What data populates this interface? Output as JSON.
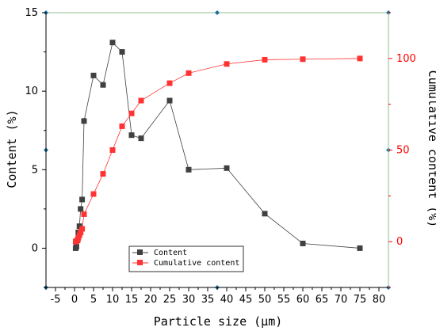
{
  "chart_data": {
    "type": "line",
    "xlabel": "Particle size (μm)",
    "ylabel_left": "Content (%)",
    "ylabel_right": "Cumulative content (%)",
    "xlim": [
      -7.5,
      82.5
    ],
    "ylim_left": [
      -2.5,
      15
    ],
    "ylim_right": [
      -25,
      125
    ],
    "x_ticks": [
      -5,
      0,
      5,
      10,
      15,
      20,
      25,
      30,
      35,
      40,
      45,
      50,
      55,
      60,
      65,
      70,
      75,
      80
    ],
    "x_tick_labels": [
      "-5",
      "0",
      "5",
      "10",
      "15",
      "20",
      "25",
      "30",
      "35",
      "40",
      "45",
      "50",
      "55",
      "60",
      "65",
      "70",
      "75",
      "80"
    ],
    "y_ticks_left": [
      0,
      5,
      10,
      15
    ],
    "y_tick_labels_left": [
      "0",
      "5",
      "10",
      "15"
    ],
    "y_ticks_right": [
      0,
      50,
      100
    ],
    "y_tick_labels_right": [
      "0",
      "50",
      "100"
    ],
    "grid": false,
    "legend_position": "bottom-center",
    "series": [
      {
        "name": "Content",
        "axis": "left",
        "color": "#404040",
        "marker": "square",
        "points": [
          [
            0.3,
            0.0
          ],
          [
            0.5,
            0.1
          ],
          [
            0.8,
            0.5
          ],
          [
            1.0,
            1.0
          ],
          [
            1.3,
            1.4
          ],
          [
            1.6,
            2.5
          ],
          [
            2.0,
            3.1
          ],
          [
            2.5,
            8.1
          ],
          [
            5.0,
            11.0
          ],
          [
            7.5,
            10.4
          ],
          [
            10.0,
            13.1
          ],
          [
            12.5,
            12.5
          ],
          [
            15.0,
            7.2
          ],
          [
            17.5,
            7.0
          ],
          [
            25.0,
            9.4
          ],
          [
            30.0,
            5.0
          ],
          [
            40.0,
            5.1
          ],
          [
            50.0,
            2.2
          ],
          [
            60.0,
            0.3
          ],
          [
            75.0,
            0.0
          ]
        ]
      },
      {
        "name": "Cumulative content",
        "axis": "right",
        "color": "#ff3333",
        "marker": "square",
        "points": [
          [
            0.3,
            0.0
          ],
          [
            0.5,
            0.2
          ],
          [
            0.8,
            1.0
          ],
          [
            1.0,
            2.0
          ],
          [
            1.3,
            3.5
          ],
          [
            1.6,
            5.0
          ],
          [
            2.0,
            7.0
          ],
          [
            2.5,
            15.0
          ],
          [
            5.0,
            26.0
          ],
          [
            7.5,
            37.0
          ],
          [
            10.0,
            50.0
          ],
          [
            12.5,
            63.0
          ],
          [
            15.0,
            70.0
          ],
          [
            17.5,
            77.0
          ],
          [
            25.0,
            86.5
          ],
          [
            30.0,
            92.0
          ],
          [
            40.0,
            97.0
          ],
          [
            50.0,
            99.3
          ],
          [
            60.0,
            99.6
          ],
          [
            75.0,
            100.0
          ]
        ]
      }
    ]
  },
  "colors": {
    "left_axis": "#000000",
    "right_axis": "#ff0000",
    "frame": "#8fbc8f",
    "corner_marker": "#1a6fa0"
  }
}
